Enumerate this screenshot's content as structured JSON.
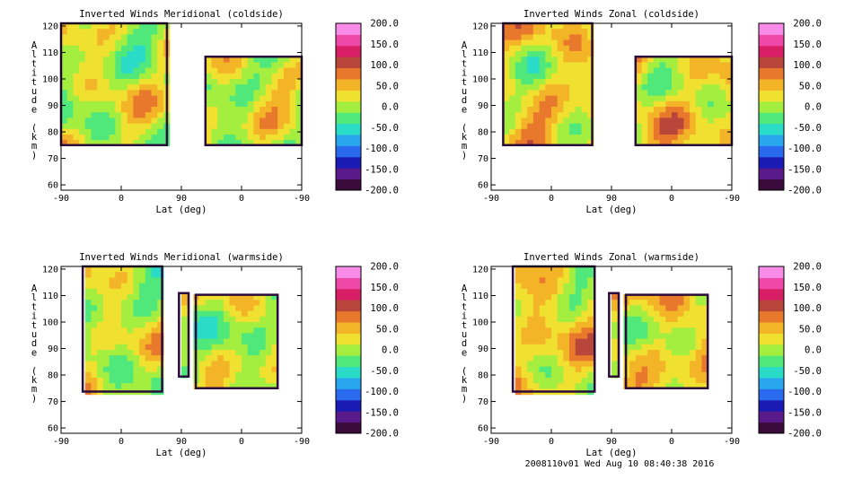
{
  "chart_data": [
    {
      "type": "heatmap",
      "title": "Inverted Winds Meridional (coldside)",
      "xlabel": "Lat (deg)",
      "ylabel": "Altitude (km)",
      "x_ticks": [
        "-90",
        "0",
        "90",
        "0",
        "-90"
      ],
      "y_ticks": [
        "60",
        "70",
        "80",
        "90",
        "100",
        "110",
        "120"
      ],
      "ylim": [
        58,
        121
      ],
      "colorbar_ticks": [
        "200.0",
        "150.0",
        "100.0",
        "50.0",
        "0.0",
        "-50.0",
        "-100.0",
        "-150.0",
        "-200.0"
      ],
      "colorbar_range": [
        -200,
        200
      ]
    },
    {
      "type": "heatmap",
      "title": "Inverted Winds Zonal (coldside)",
      "xlabel": "Lat (deg)",
      "ylabel": "Altitude (km)",
      "x_ticks": [
        "-90",
        "0",
        "90",
        "0",
        "-90"
      ],
      "y_ticks": [
        "60",
        "70",
        "80",
        "90",
        "100",
        "110",
        "120"
      ],
      "ylim": [
        58,
        121
      ],
      "colorbar_ticks": [
        "200.0",
        "150.0",
        "100.0",
        "50.0",
        "0.0",
        "-50.0",
        "-100.0",
        "-150.0",
        "-200.0"
      ],
      "colorbar_range": [
        -200,
        200
      ]
    },
    {
      "type": "heatmap",
      "title": "Inverted Winds Meridional (warmside)",
      "xlabel": "Lat (deg)",
      "ylabel": "Altitude (km)",
      "x_ticks": [
        "-90",
        "0",
        "90",
        "0",
        "-90"
      ],
      "y_ticks": [
        "60",
        "70",
        "80",
        "90",
        "100",
        "110",
        "120"
      ],
      "ylim": [
        58,
        121
      ],
      "colorbar_ticks": [
        "200.0",
        "150.0",
        "100.0",
        "50.0",
        "0.0",
        "-50.0",
        "-100.0",
        "-150.0",
        "-200.0"
      ],
      "colorbar_range": [
        -200,
        200
      ]
    },
    {
      "type": "heatmap",
      "title": "Inverted Winds Zonal (warmside)",
      "xlabel": "Lat (deg)",
      "ylabel": "Altitude (km)",
      "x_ticks": [
        "-90",
        "0",
        "90",
        "0",
        "-90"
      ],
      "y_ticks": [
        "60",
        "70",
        "80",
        "90",
        "100",
        "110",
        "120"
      ],
      "ylim": [
        58,
        121
      ],
      "colorbar_ticks": [
        "200.0",
        "150.0",
        "100.0",
        "50.0",
        "0.0",
        "-50.0",
        "-100.0",
        "-150.0",
        "-200.0"
      ],
      "colorbar_range": [
        -200,
        200
      ]
    }
  ],
  "colors": {
    "colorbar": [
      "#3a0a3a",
      "#5a1a8a",
      "#1a1ab4",
      "#2a6aee",
      "#28a6ee",
      "#2adcc8",
      "#50e87a",
      "#a4ee40",
      "#f0e030",
      "#f4b428",
      "#e8782c",
      "#b8463a",
      "#d81e64",
      "#f048a8",
      "#f88ce8"
    ]
  },
  "footer": "2008110v01 Wed Aug 10 08:40:38 2016"
}
